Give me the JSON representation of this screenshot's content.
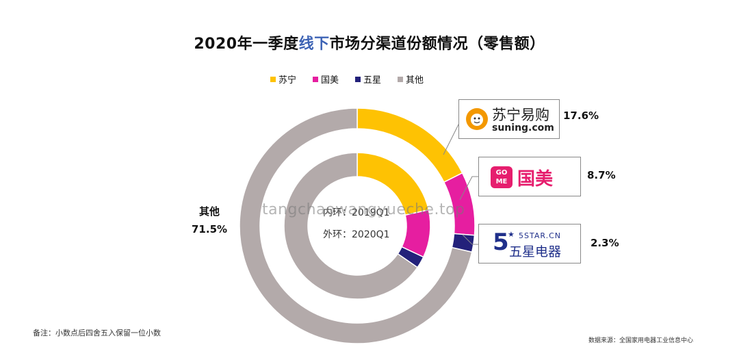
{
  "title": {
    "year": "2020",
    "prefix": "年一季度",
    "highlight": "线下",
    "suffix": "市场分渠道份额情况（零售额）"
  },
  "colors": {
    "suning": "#fec203",
    "gome": "#e61ea0",
    "samsung": "#23217a",
    "other": "#b3aaaa",
    "title_highlight": "#3d63b5"
  },
  "chart_data": {
    "type": "pie",
    "variant": "double-donut",
    "title": "2020年一季度线下市场分渠道份额情况（零售额）",
    "legend": [
      "苏宁",
      "国美",
      "五星",
      "其他"
    ],
    "legend_position": "top",
    "series": [
      {
        "name": "外环：2020Q1",
        "values": [
          17.6,
          8.7,
          2.3,
          71.5
        ]
      },
      {
        "name": "内环：2019Q1",
        "values": [
          21.5,
          10.5,
          2.6,
          65.4
        ]
      }
    ],
    "categories": [
      "苏宁",
      "国美",
      "五星",
      "其他"
    ],
    "data_labels": [
      "17.6%",
      "8.7%",
      "2.3%",
      "71.5%"
    ]
  },
  "labels": {
    "other_name": "其他",
    "other_pct": "71.5%",
    "suning_pct": "17.6%",
    "gome_pct": "8.7%",
    "samsung_pct": "2.3%",
    "inner": "内环：2019Q1",
    "outer": "外环：2020Q1"
  },
  "brands": {
    "suning_cn": "苏宁易购",
    "suning_en": "suning.com",
    "gome_logo": "GO ME",
    "gome_cn": "国美",
    "samsung_num": "5",
    "samsung_en": "5STAR.CN",
    "samsung_cn": "五星电器"
  },
  "watermark": "tangchaowangyueche.top",
  "footnote": "备注：小数点后四舍五入保留一位小数",
  "source": "数据来源：全国家用电器工业信息中心"
}
